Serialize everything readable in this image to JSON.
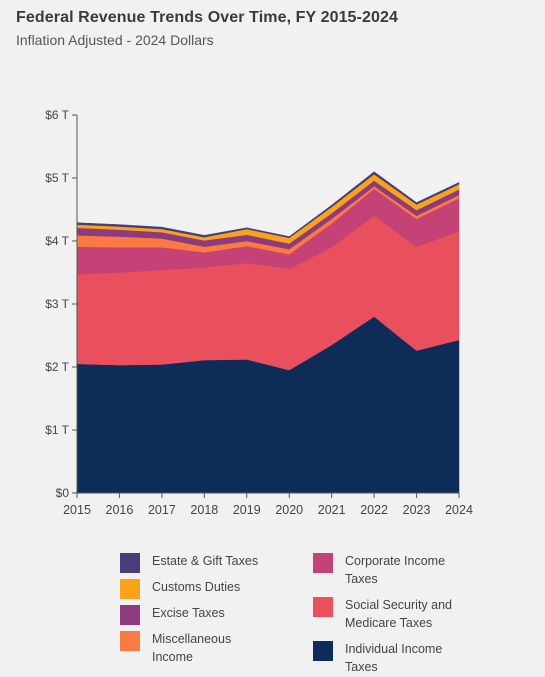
{
  "header": {
    "title": "Federal Revenue Trends Over Time, FY 2015-2024",
    "subtitle": "Inflation Adjusted - 2024 Dollars"
  },
  "colors": {
    "estate_gift": "#4a3b7a",
    "customs": "#f9a31a",
    "excise": "#8e3a7e",
    "misc": "#fb7a41",
    "corporate": "#c44275",
    "social_security": "#ea4f5e",
    "individual": "#0e2c58",
    "axis": "#555555"
  },
  "chart_data": {
    "type": "area",
    "stacked": true,
    "x": [
      "2015",
      "2016",
      "2017",
      "2018",
      "2019",
      "2020",
      "2021",
      "2022",
      "2023",
      "2024"
    ],
    "y_ticks": [
      "$0",
      "$1 T",
      "$2 T",
      "$3 T",
      "$4 T",
      "$5 T",
      "$6 T"
    ],
    "ylim": [
      0,
      6
    ],
    "unit": "trillions of 2024 dollars",
    "legend_placement": "bottom",
    "series": [
      {
        "key": "individual",
        "name": "Individual Income Taxes",
        "color": "#0e2c58",
        "values": [
          2.05,
          2.03,
          2.04,
          2.11,
          2.12,
          1.95,
          2.35,
          2.8,
          2.26,
          2.43
        ]
      },
      {
        "key": "social_security",
        "name": "Social Security and Medicare Taxes",
        "color": "#ea4f5e",
        "values": [
          1.42,
          1.47,
          1.5,
          1.47,
          1.53,
          1.61,
          1.55,
          1.6,
          1.65,
          1.72
        ]
      },
      {
        "key": "corporate",
        "name": "Corporate Income Taxes",
        "color": "#c44275",
        "values": [
          0.44,
          0.4,
          0.36,
          0.24,
          0.27,
          0.23,
          0.38,
          0.43,
          0.44,
          0.53
        ]
      },
      {
        "key": "misc",
        "name": "Miscellaneous Income",
        "color": "#fb7a41",
        "values": [
          0.18,
          0.17,
          0.14,
          0.09,
          0.08,
          0.08,
          0.07,
          0.04,
          0.05,
          0.05
        ]
      },
      {
        "key": "excise",
        "name": "Excise Taxes",
        "color": "#8e3a7e",
        "values": [
          0.12,
          0.11,
          0.1,
          0.1,
          0.1,
          0.09,
          0.09,
          0.09,
          0.09,
          0.09
        ]
      },
      {
        "key": "customs",
        "name": "Customs Duties",
        "color": "#f9a31a",
        "values": [
          0.05,
          0.05,
          0.05,
          0.05,
          0.09,
          0.09,
          0.1,
          0.1,
          0.09,
          0.08
        ]
      },
      {
        "key": "estate_gift",
        "name": "Estate & Gift Taxes",
        "color": "#4a3b7a",
        "values": [
          0.03,
          0.03,
          0.03,
          0.03,
          0.02,
          0.02,
          0.03,
          0.04,
          0.03,
          0.03
        ]
      }
    ]
  },
  "legend": {
    "left": [
      {
        "label": "Estate & Gift Taxes",
        "color": "#4a3b7a"
      },
      {
        "label": "Customs Duties",
        "color": "#f9a31a"
      },
      {
        "label": "Excise Taxes",
        "color": "#8e3a7e"
      },
      {
        "label": "Miscellaneous Income",
        "color": "#fb7a41"
      }
    ],
    "right": [
      {
        "label": "Corporate Income Taxes",
        "color": "#c44275"
      },
      {
        "label": "Social Security and Medicare Taxes",
        "color": "#ea4f5e"
      },
      {
        "label": "Individual Income Taxes",
        "color": "#0e2c58"
      }
    ]
  }
}
